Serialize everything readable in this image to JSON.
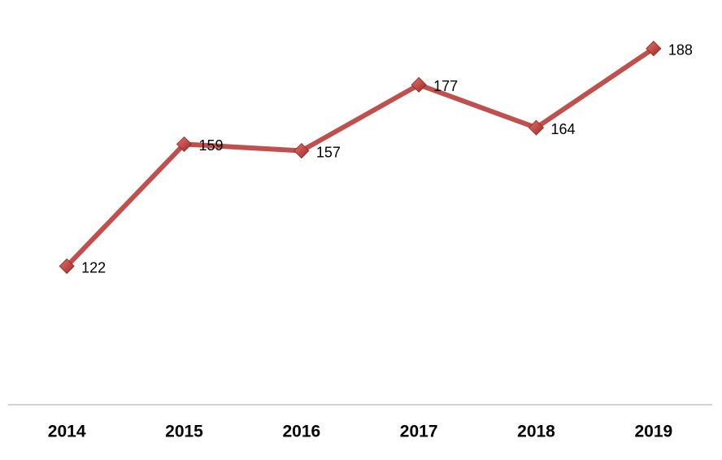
{
  "chart_data": {
    "type": "line",
    "categories": [
      "2014",
      "2015",
      "2016",
      "2017",
      "2018",
      "2019"
    ],
    "series": [
      {
        "color": "#c0504d",
        "values": [
          122,
          159,
          157,
          177,
          164,
          188
        ]
      }
    ],
    "ylim": [
      80,
      200
    ]
  }
}
